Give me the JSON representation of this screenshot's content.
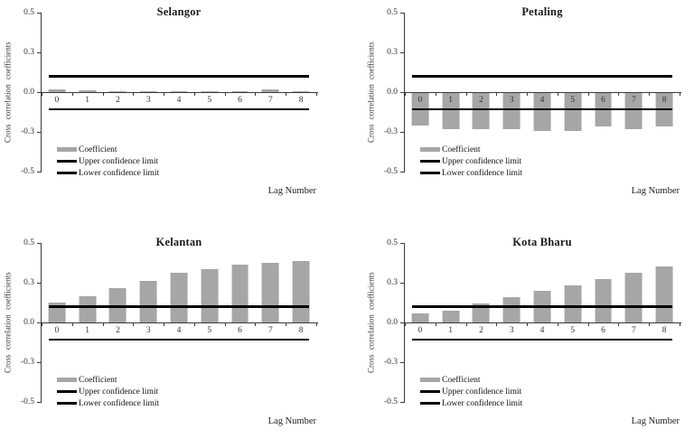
{
  "figure": {
    "ylabel": "Cross correlation coefficients",
    "xlabel": "Lag Number",
    "legend": [
      {
        "label": "Coefficient",
        "swatch": "bar"
      },
      {
        "label": "Upper confidence limit",
        "swatch": "line"
      },
      {
        "label": "Lower confidence limit",
        "swatch": "line"
      }
    ],
    "colors": {
      "bar": "#a6a6a6",
      "confidence_line": "#000000",
      "axis": "#3a3a3a",
      "text": "#1a1a1a"
    }
  },
  "chart_data": [
    {
      "type": "bar",
      "title": "Selangor",
      "categories": [
        "0",
        "1",
        "2",
        "3",
        "4",
        "5",
        "6",
        "7",
        "8"
      ],
      "values": [
        0.02,
        0.015,
        0.01,
        0.005,
        0.01,
        0.01,
        0.01,
        0.02,
        0.01
      ],
      "upper_confidence_limit": 0.12,
      "lower_confidence_limit": -0.13,
      "ylim": [
        -0.5,
        0.5
      ],
      "yticks": [
        "0.5",
        "0.3",
        "0.0",
        "-0.3",
        "-0.5"
      ],
      "legend_position": "lower-left",
      "grid": "off"
    },
    {
      "type": "bar",
      "title": "Petaling",
      "categories": [
        "0",
        "1",
        "2",
        "3",
        "4",
        "5",
        "6",
        "7",
        "8"
      ],
      "values": [
        -0.25,
        -0.28,
        -0.28,
        -0.28,
        -0.29,
        -0.29,
        -0.26,
        -0.28,
        -0.26
      ],
      "upper_confidence_limit": 0.12,
      "lower_confidence_limit": -0.13,
      "ylim": [
        -0.5,
        0.5
      ],
      "yticks": [
        "0.5",
        "0.3",
        "0.0",
        "-0.3",
        "-0.5"
      ],
      "legend_position": "lower-left",
      "grid": "off"
    },
    {
      "type": "bar",
      "title": "Kelantan",
      "categories": [
        "0",
        "1",
        "2",
        "3",
        "4",
        "5",
        "6",
        "7",
        "8"
      ],
      "values": [
        0.15,
        0.2,
        0.26,
        0.31,
        0.35,
        0.37,
        0.39,
        0.4,
        0.41
      ],
      "upper_confidence_limit": 0.12,
      "lower_confidence_limit": -0.13,
      "ylim": [
        -0.5,
        0.5
      ],
      "yticks": [
        "0.5",
        "0.3",
        "0.0",
        "-0.3",
        "-0.5"
      ],
      "legend_position": "lower-left",
      "grid": "off"
    },
    {
      "type": "bar",
      "title": "Kota Bharu",
      "categories": [
        "0",
        "1",
        "2",
        "3",
        "4",
        "5",
        "6",
        "7",
        "8"
      ],
      "values": [
        0.07,
        0.09,
        0.14,
        0.19,
        0.24,
        0.28,
        0.32,
        0.35,
        0.38
      ],
      "upper_confidence_limit": 0.12,
      "lower_confidence_limit": -0.13,
      "ylim": [
        -0.5,
        0.5
      ],
      "yticks": [
        "0.5",
        "0.3",
        "0.0",
        "-0.3",
        "-0.5"
      ],
      "legend_position": "lower-left",
      "grid": "off"
    }
  ]
}
